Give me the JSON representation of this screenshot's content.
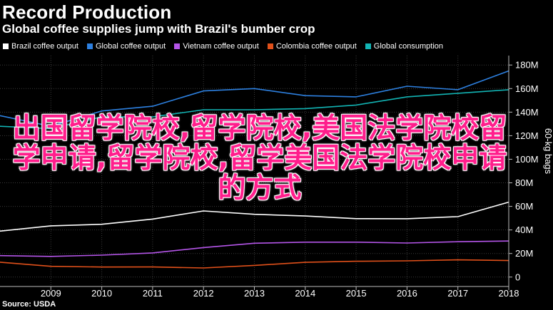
{
  "header": {
    "title": "Record Production",
    "subtitle": "Global coffee supplies jump with Brazil's bumber crop"
  },
  "footer": {
    "source": "Source: USDA"
  },
  "overlay": {
    "text": "出国留学院校,留学院校,美国法学院校留学申请,留学院校,留学美国法学院校申请的方式",
    "color": "#ff1e8c"
  },
  "chart_data": {
    "type": "line",
    "x": [
      2008,
      2009,
      2010,
      2011,
      2012,
      2013,
      2014,
      2015,
      2016,
      2017,
      2018
    ],
    "xticks": [
      "2009",
      "2010",
      "2011",
      "2012",
      "2013",
      "2014",
      "2015",
      "2016",
      "2017",
      "2018"
    ],
    "xlim": [
      2008,
      2018
    ],
    "ylim": [
      -8,
      188
    ],
    "yticks": [
      0,
      20,
      40,
      60,
      80,
      100,
      120,
      140,
      160,
      180
    ],
    "ytick_labels": [
      "0",
      "20M",
      "40M",
      "60M",
      "80M",
      "100M",
      "120M",
      "140M",
      "160M",
      "180M"
    ],
    "ylabel": "60-kg bags",
    "legend_position": "top-left",
    "grid": true,
    "series": [
      {
        "name": "Brazil coffee output",
        "color": "#ffffff",
        "values": [
          39,
          43.5,
          44.8,
          49.2,
          56.1,
          53.3,
          51.8,
          49.6,
          49.5,
          51.3,
          63.6
        ]
      },
      {
        "name": "Global coffee output",
        "color": "#2d80e0",
        "values": [
          137,
          128,
          141,
          145,
          158,
          160,
          154,
          153,
          162,
          159,
          175
        ]
      },
      {
        "name": "Vietnam coffee output",
        "color": "#b455e8",
        "values": [
          18.2,
          17.5,
          18.6,
          20.5,
          25,
          28.7,
          29.6,
          29.6,
          28.9,
          30,
          30.6
        ]
      },
      {
        "name": "Colombia coffee output",
        "color": "#e0501a",
        "values": [
          12.6,
          9.1,
          8.5,
          8.6,
          7.7,
          9.9,
          12.5,
          13.4,
          13.8,
          14.6,
          14
        ]
      },
      {
        "name": "Global consumption",
        "color": "#12b4b4",
        "values": [
          128,
          126,
          136,
          136,
          142,
          142,
          143,
          146,
          153,
          156,
          159
        ]
      }
    ]
  }
}
